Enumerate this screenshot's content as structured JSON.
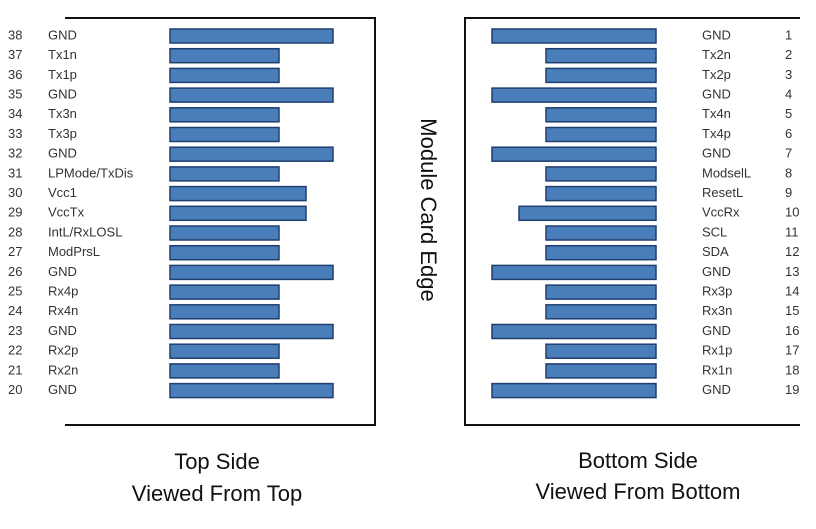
{
  "center_label": "Module Card Edge",
  "top_side": {
    "caption": [
      "Top Side",
      "Viewed From Top"
    ],
    "pins": [
      {
        "number": 38,
        "name": "GND"
      },
      {
        "number": 37,
        "name": "Tx1n"
      },
      {
        "number": 36,
        "name": "Tx1p"
      },
      {
        "number": 35,
        "name": "GND"
      },
      {
        "number": 34,
        "name": "Tx3n"
      },
      {
        "number": 33,
        "name": "Tx3p"
      },
      {
        "number": 32,
        "name": "GND"
      },
      {
        "number": 31,
        "name": "LPMode/TxDis"
      },
      {
        "number": 30,
        "name": "Vcc1"
      },
      {
        "number": 29,
        "name": "VccTx"
      },
      {
        "number": 28,
        "name": "IntL/RxLOSL"
      },
      {
        "number": 27,
        "name": "ModPrsL"
      },
      {
        "number": 26,
        "name": "GND"
      },
      {
        "number": 25,
        "name": "Rx4p"
      },
      {
        "number": 24,
        "name": "Rx4n"
      },
      {
        "number": 23,
        "name": "GND"
      },
      {
        "number": 22,
        "name": "Rx2p"
      },
      {
        "number": 21,
        "name": "Rx2n"
      },
      {
        "number": 20,
        "name": "GND"
      }
    ]
  },
  "bottom_side": {
    "caption": [
      "Bottom Side",
      "Viewed From Bottom"
    ],
    "pins": [
      {
        "number": 1,
        "name": "GND"
      },
      {
        "number": 2,
        "name": "Tx2n"
      },
      {
        "number": 3,
        "name": "Tx2p"
      },
      {
        "number": 4,
        "name": "GND"
      },
      {
        "number": 5,
        "name": "Tx4n"
      },
      {
        "number": 6,
        "name": "Tx4p"
      },
      {
        "number": 7,
        "name": "GND"
      },
      {
        "number": 8,
        "name": "ModselL"
      },
      {
        "number": 9,
        "name": "ResetL"
      },
      {
        "number": 10,
        "name": "VccRx"
      },
      {
        "number": 11,
        "name": "SCL"
      },
      {
        "number": 12,
        "name": "SDA"
      },
      {
        "number": 13,
        "name": "GND"
      },
      {
        "number": 14,
        "name": "Rx3p"
      },
      {
        "number": 15,
        "name": "Rx3n"
      },
      {
        "number": 16,
        "name": "GND"
      },
      {
        "number": 17,
        "name": "Rx1p"
      },
      {
        "number": 18,
        "name": "Rx1n"
      },
      {
        "number": 19,
        "name": "GND"
      }
    ]
  }
}
